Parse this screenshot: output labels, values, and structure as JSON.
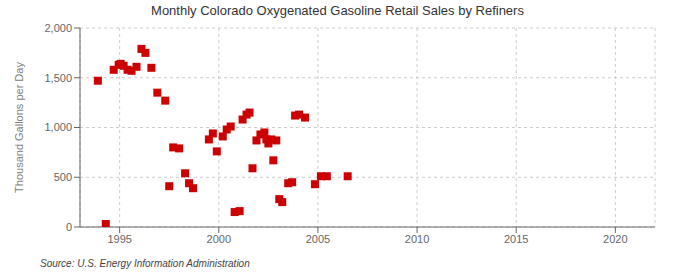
{
  "chart_data": {
    "type": "scatter",
    "title": "Monthly Colorado Oxygenated Gasoline Retail Sales by Refiners",
    "ylabel": "Thousand Gallons per Day",
    "annotations": [
      "Source: U.S. Energy Information Administration"
    ],
    "color": "#cc0000",
    "marker": "square",
    "grid": true,
    "xlim": [
      1993,
      2022
    ],
    "ylim": [
      0,
      2000
    ],
    "xticks": [
      1995,
      2000,
      2005,
      2010,
      2015,
      2020
    ],
    "yticks": [
      0,
      500,
      {
        "value": 1000,
        "label": "1,000"
      },
      {
        "value": 1500,
        "label": "1,500"
      },
      {
        "value": 2000,
        "label": "2,000"
      }
    ],
    "x": [
      1993.9,
      1994.3,
      1994.7,
      1994.95,
      1995.05,
      1995.2,
      1995.4,
      1995.6,
      1995.85,
      1996.1,
      1996.3,
      1996.6,
      1996.9,
      1997.3,
      1997.5,
      1997.7,
      1998.0,
      1998.3,
      1998.5,
      1998.7,
      1999.5,
      1999.7,
      1999.9,
      2000.2,
      2000.4,
      2000.6,
      2000.8,
      2001.05,
      2001.2,
      2001.4,
      2001.55,
      2001.7,
      2001.9,
      2002.1,
      2002.3,
      2002.4,
      2002.5,
      2002.65,
      2002.75,
      2002.9,
      2003.05,
      2003.2,
      2003.5,
      2003.7,
      2003.85,
      2004.05,
      2004.35,
      2004.85,
      2005.15,
      2005.45,
      2006.5
    ],
    "values": [
      1470,
      30,
      1580,
      1630,
      1640,
      1620,
      1580,
      1570,
      1610,
      1790,
      1750,
      1600,
      1350,
      1270,
      410,
      800,
      790,
      540,
      440,
      390,
      880,
      940,
      760,
      910,
      980,
      1010,
      150,
      160,
      1080,
      1130,
      1150,
      590,
      870,
      930,
      950,
      880,
      840,
      880,
      670,
      870,
      280,
      250,
      440,
      450,
      1120,
      1130,
      1100,
      430,
      510,
      510,
      510
    ]
  }
}
